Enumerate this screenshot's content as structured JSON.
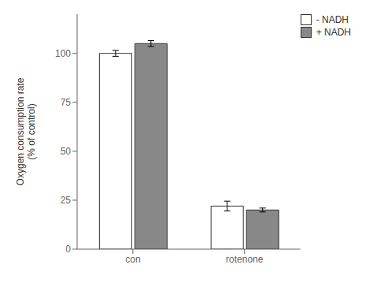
{
  "chart_data": {
    "type": "bar",
    "categories": [
      "con",
      "rotenone"
    ],
    "series": [
      {
        "name": "- NADH",
        "color": "white",
        "values": [
          100,
          22
        ],
        "errors": [
          1.5,
          2.5
        ]
      },
      {
        "name": "+ NADH",
        "color": "#888888",
        "values": [
          105,
          20
        ],
        "errors": [
          1.5,
          1.0
        ]
      }
    ],
    "y_label": "Oxygen consumption rate\n(% of control)",
    "ylim": [
      0,
      120
    ],
    "yticks": [
      0,
      25,
      50,
      75,
      100
    ],
    "legend": "upper right"
  }
}
